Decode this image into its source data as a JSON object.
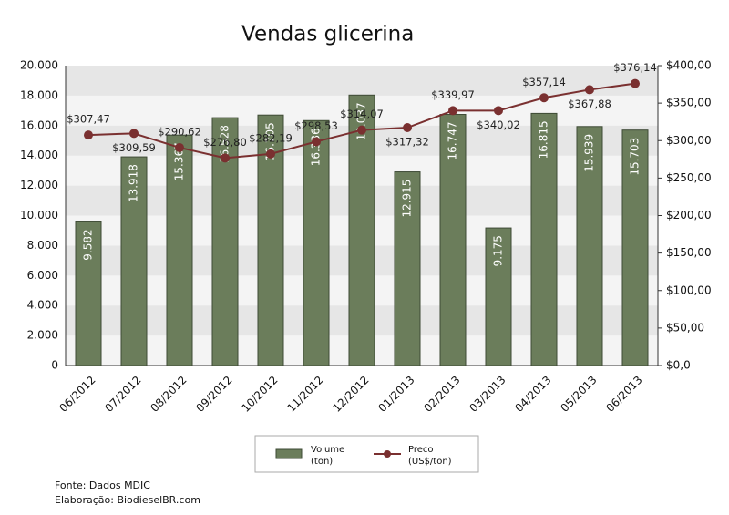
{
  "chart_data": {
    "type": "bar-line",
    "title": "Vendas glicerina",
    "categories": [
      "06/2012",
      "07/2012",
      "08/2012",
      "09/2012",
      "10/2012",
      "11/2012",
      "12/2012",
      "01/2013",
      "02/2013",
      "03/2013",
      "04/2013",
      "05/2013",
      "06/2013"
    ],
    "series": [
      {
        "name": "Volume",
        "unit": "(ton)",
        "type": "bar",
        "color": "#6b7d5b",
        "values": [
          9582,
          13918,
          15367,
          16528,
          16705,
          16336,
          18037,
          12915,
          16747,
          9175,
          16815,
          15939,
          15703
        ],
        "value_labels": [
          "9.582",
          "13.918",
          "15.367",
          "16.528",
          "16.705",
          "16.336",
          "18.037",
          "12.915",
          "16.747",
          "9.175",
          "16.815",
          "15.939",
          "15.703"
        ]
      },
      {
        "name": "Preco",
        "unit": "(US$/ton)",
        "type": "line",
        "axis": "y2",
        "color": "#7a3030",
        "values": [
          307.47,
          309.59,
          290.62,
          276.8,
          282.19,
          298.53,
          314.07,
          317.32,
          339.97,
          340.02,
          357.14,
          367.88,
          376.14
        ],
        "value_labels": [
          "$307,47",
          "$309,59",
          "$290,62",
          "$276,80",
          "$282,19",
          "$298,53",
          "$314,07",
          "$317,32",
          "$339,97",
          "$340,02",
          "$357,14",
          "$367,88",
          "$376,14"
        ]
      }
    ],
    "ylim": [
      0,
      20000
    ],
    "yticks": [
      0,
      {
        "value": 2000,
        "label": "2.000"
      },
      {
        "value": 4000,
        "label": "4.000"
      },
      {
        "value": 6000,
        "label": "6.000"
      },
      {
        "value": 8000,
        "label": "8.000"
      },
      {
        "value": 10000,
        "label": "10.000"
      },
      {
        "value": 12000,
        "label": "12.000"
      },
      {
        "value": 14000,
        "label": "14.000"
      },
      {
        "value": 16000,
        "label": "16.000"
      },
      {
        "value": 18000,
        "label": "18.000"
      },
      {
        "value": 20000,
        "label": "20.000"
      }
    ],
    "y2lim": [
      0,
      400
    ],
    "y2ticks": [
      {
        "value": 0,
        "label": "$0,0"
      },
      {
        "value": 50,
        "label": "$50,00"
      },
      {
        "value": 100,
        "label": "$100,00"
      },
      {
        "value": 150,
        "label": "$150,00"
      },
      {
        "value": 200,
        "label": "$200,00"
      },
      {
        "value": 250,
        "label": "$250,00"
      },
      {
        "value": 300,
        "label": "$300,00"
      },
      {
        "value": 350,
        "label": "$350,00"
      },
      {
        "value": 400,
        "label": "$400,00"
      }
    ],
    "grid": true,
    "legend": "bottom",
    "footer": [
      "Fonte: Dados MDIC",
      "Elaboração: BiodieselBR.com"
    ]
  }
}
